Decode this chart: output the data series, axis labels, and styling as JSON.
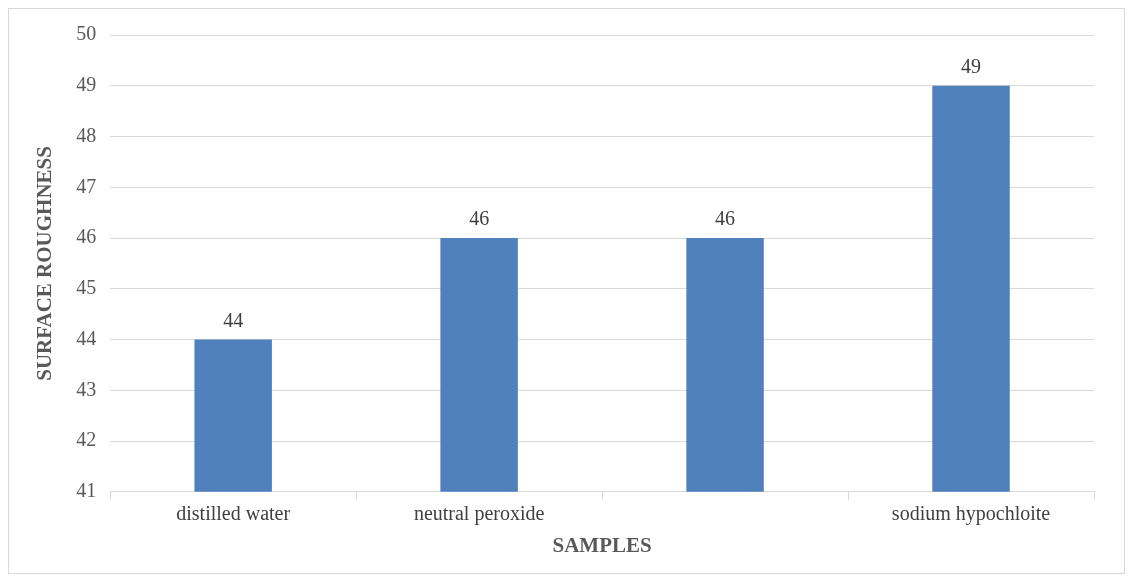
{
  "chart_data": {
    "type": "bar",
    "xlabel": "SAMPLES",
    "ylabel": "SURFACE ROUGHNESS",
    "categories": [
      "distilled water",
      "neutral peroxide",
      null,
      "sodium hypochloite"
    ],
    "values": [
      44,
      46,
      46,
      49
    ],
    "color": "#4f81bd",
    "ylim": [
      41,
      50
    ],
    "yticks": [
      41,
      42,
      43,
      44,
      45,
      46,
      47,
      48,
      49,
      50
    ],
    "grid": "y",
    "legend": false,
    "data_labels": true
  }
}
